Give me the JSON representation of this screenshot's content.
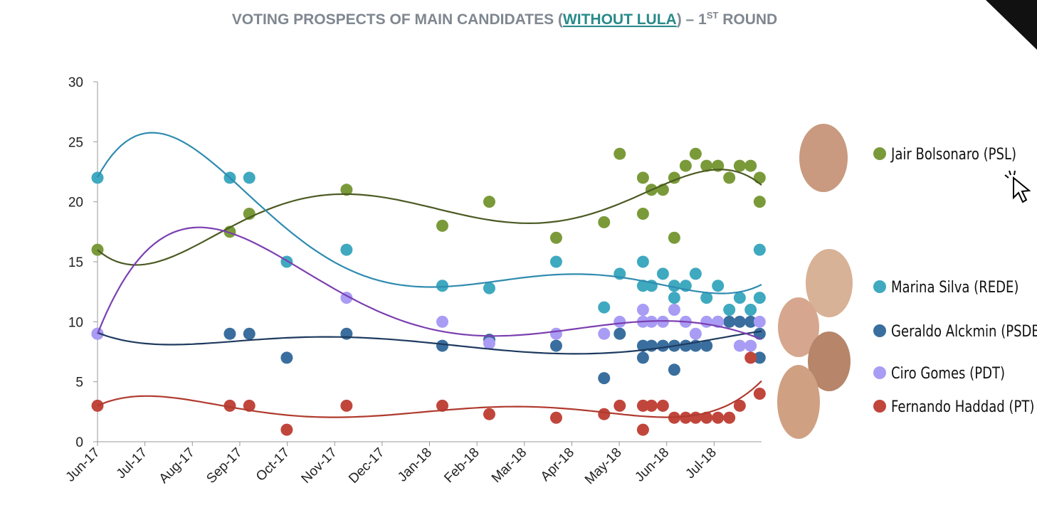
{
  "chart_data": {
    "type": "scatter",
    "title_parts": [
      "VOTING PROSPECTS OF MAIN CANDIDATES (",
      "WITHOUT LULA",
      ") – 1",
      "ST",
      " ROUND"
    ],
    "xlim": [
      0,
      14
    ],
    "ylim": [
      0,
      30
    ],
    "yticks": [
      0,
      5,
      10,
      15,
      20,
      25,
      30
    ],
    "xticks": [
      {
        "value": 0,
        "label": "Jun-17"
      },
      {
        "value": 1,
        "label": "Jul-17"
      },
      {
        "value": 2,
        "label": "Aug-17"
      },
      {
        "value": 3,
        "label": "Sep-17"
      },
      {
        "value": 4,
        "label": "Oct-17"
      },
      {
        "value": 5,
        "label": "Nov-17"
      },
      {
        "value": 6,
        "label": "Dec-17"
      },
      {
        "value": 7,
        "label": "Jan-18"
      },
      {
        "value": 8,
        "label": "Feb-18"
      },
      {
        "value": 9,
        "label": "Mar-18"
      },
      {
        "value": 10,
        "label": "Apr-18"
      },
      {
        "value": 11,
        "label": "May-18"
      },
      {
        "value": 12,
        "label": "Jun-18"
      },
      {
        "value": 13,
        "label": "Jul-18"
      }
    ],
    "grid": false,
    "trendline": true,
    "series": [
      {
        "name": "Jair Bolsonaro (PSL)",
        "color": "#7a9a3a",
        "trend_color": "#4b5a22",
        "x": [
          0,
          2.79,
          3.2,
          5.25,
          7.27,
          8.26,
          9.67,
          10.68,
          11.01,
          11.5,
          11.5,
          11.68,
          11.92,
          12.16,
          12.16,
          12.4,
          12.61,
          12.84,
          13.08,
          13.32,
          13.54,
          13.77,
          13.96,
          13.96
        ],
        "values": [
          16,
          17.5,
          19,
          21,
          18,
          20,
          17,
          18.3,
          24,
          22,
          19,
          21,
          21,
          22,
          17,
          23,
          24,
          23,
          23,
          22,
          23,
          23,
          22,
          20
        ]
      },
      {
        "name": "Marina Silva (REDE)",
        "color": "#3fa9c0",
        "trend_color": "#2f8bb0",
        "x": [
          0,
          2.79,
          3.2,
          3.99,
          5.25,
          7.27,
          8.26,
          9.67,
          10.68,
          11.01,
          11.5,
          11.5,
          11.68,
          11.92,
          12.16,
          12.16,
          12.4,
          12.61,
          12.84,
          13.08,
          13.32,
          13.54,
          13.77,
          13.96,
          13.96
        ],
        "values": [
          22,
          22,
          22,
          15,
          16,
          13,
          12.8,
          15,
          11.2,
          14,
          15,
          13,
          13,
          14,
          12,
          13,
          13,
          14,
          12,
          13,
          11,
          12,
          11,
          12,
          16
        ]
      },
      {
        "name": "Geraldo Alckmin (PSDB)",
        "color": "#3a6e9e",
        "trend_color": "#1e3a5f",
        "x": [
          0,
          2.79,
          3.2,
          3.99,
          5.25,
          7.27,
          8.26,
          9.67,
          10.68,
          11.01,
          11.5,
          11.5,
          11.68,
          11.92,
          12.16,
          12.16,
          12.4,
          12.61,
          12.84,
          13.08,
          13.32,
          13.54,
          13.77,
          13.96,
          13.96
        ],
        "values": [
          9,
          9,
          9,
          7,
          9,
          8,
          8.5,
          8,
          5.3,
          9,
          8,
          7,
          8,
          8,
          8,
          6,
          8,
          8,
          8,
          10,
          10,
          10,
          10,
          9,
          7
        ]
      },
      {
        "name": "Ciro Gomes (PDT)",
        "color": "#a99cf5",
        "trend_color": "#7b3fb0",
        "x": [
          0,
          5.25,
          7.27,
          8.26,
          9.67,
          10.68,
          11.01,
          11.5,
          11.5,
          11.68,
          11.92,
          12.16,
          12.4,
          12.61,
          12.84,
          13.08,
          13.54,
          13.77,
          13.96
        ],
        "values": [
          9,
          12,
          10,
          8.2,
          9,
          9,
          10,
          11,
          10,
          10,
          10,
          11,
          10,
          9,
          10,
          10,
          8,
          8,
          10
        ]
      },
      {
        "name": "Fernando Haddad (PT)",
        "color": "#c0463c",
        "trend_color": "#b03a2e",
        "x": [
          0,
          2.79,
          3.2,
          3.99,
          5.25,
          7.27,
          8.26,
          9.67,
          10.68,
          11.01,
          11.5,
          11.5,
          11.68,
          11.92,
          12.16,
          12.4,
          12.61,
          12.84,
          13.08,
          13.32,
          13.54,
          13.77,
          13.96
        ],
        "values": [
          3,
          3,
          3,
          1,
          3,
          3,
          2.3,
          2,
          2.3,
          3,
          3,
          1,
          3,
          3,
          2,
          2,
          2,
          2,
          2,
          2,
          3,
          7,
          4
        ]
      }
    ]
  }
}
